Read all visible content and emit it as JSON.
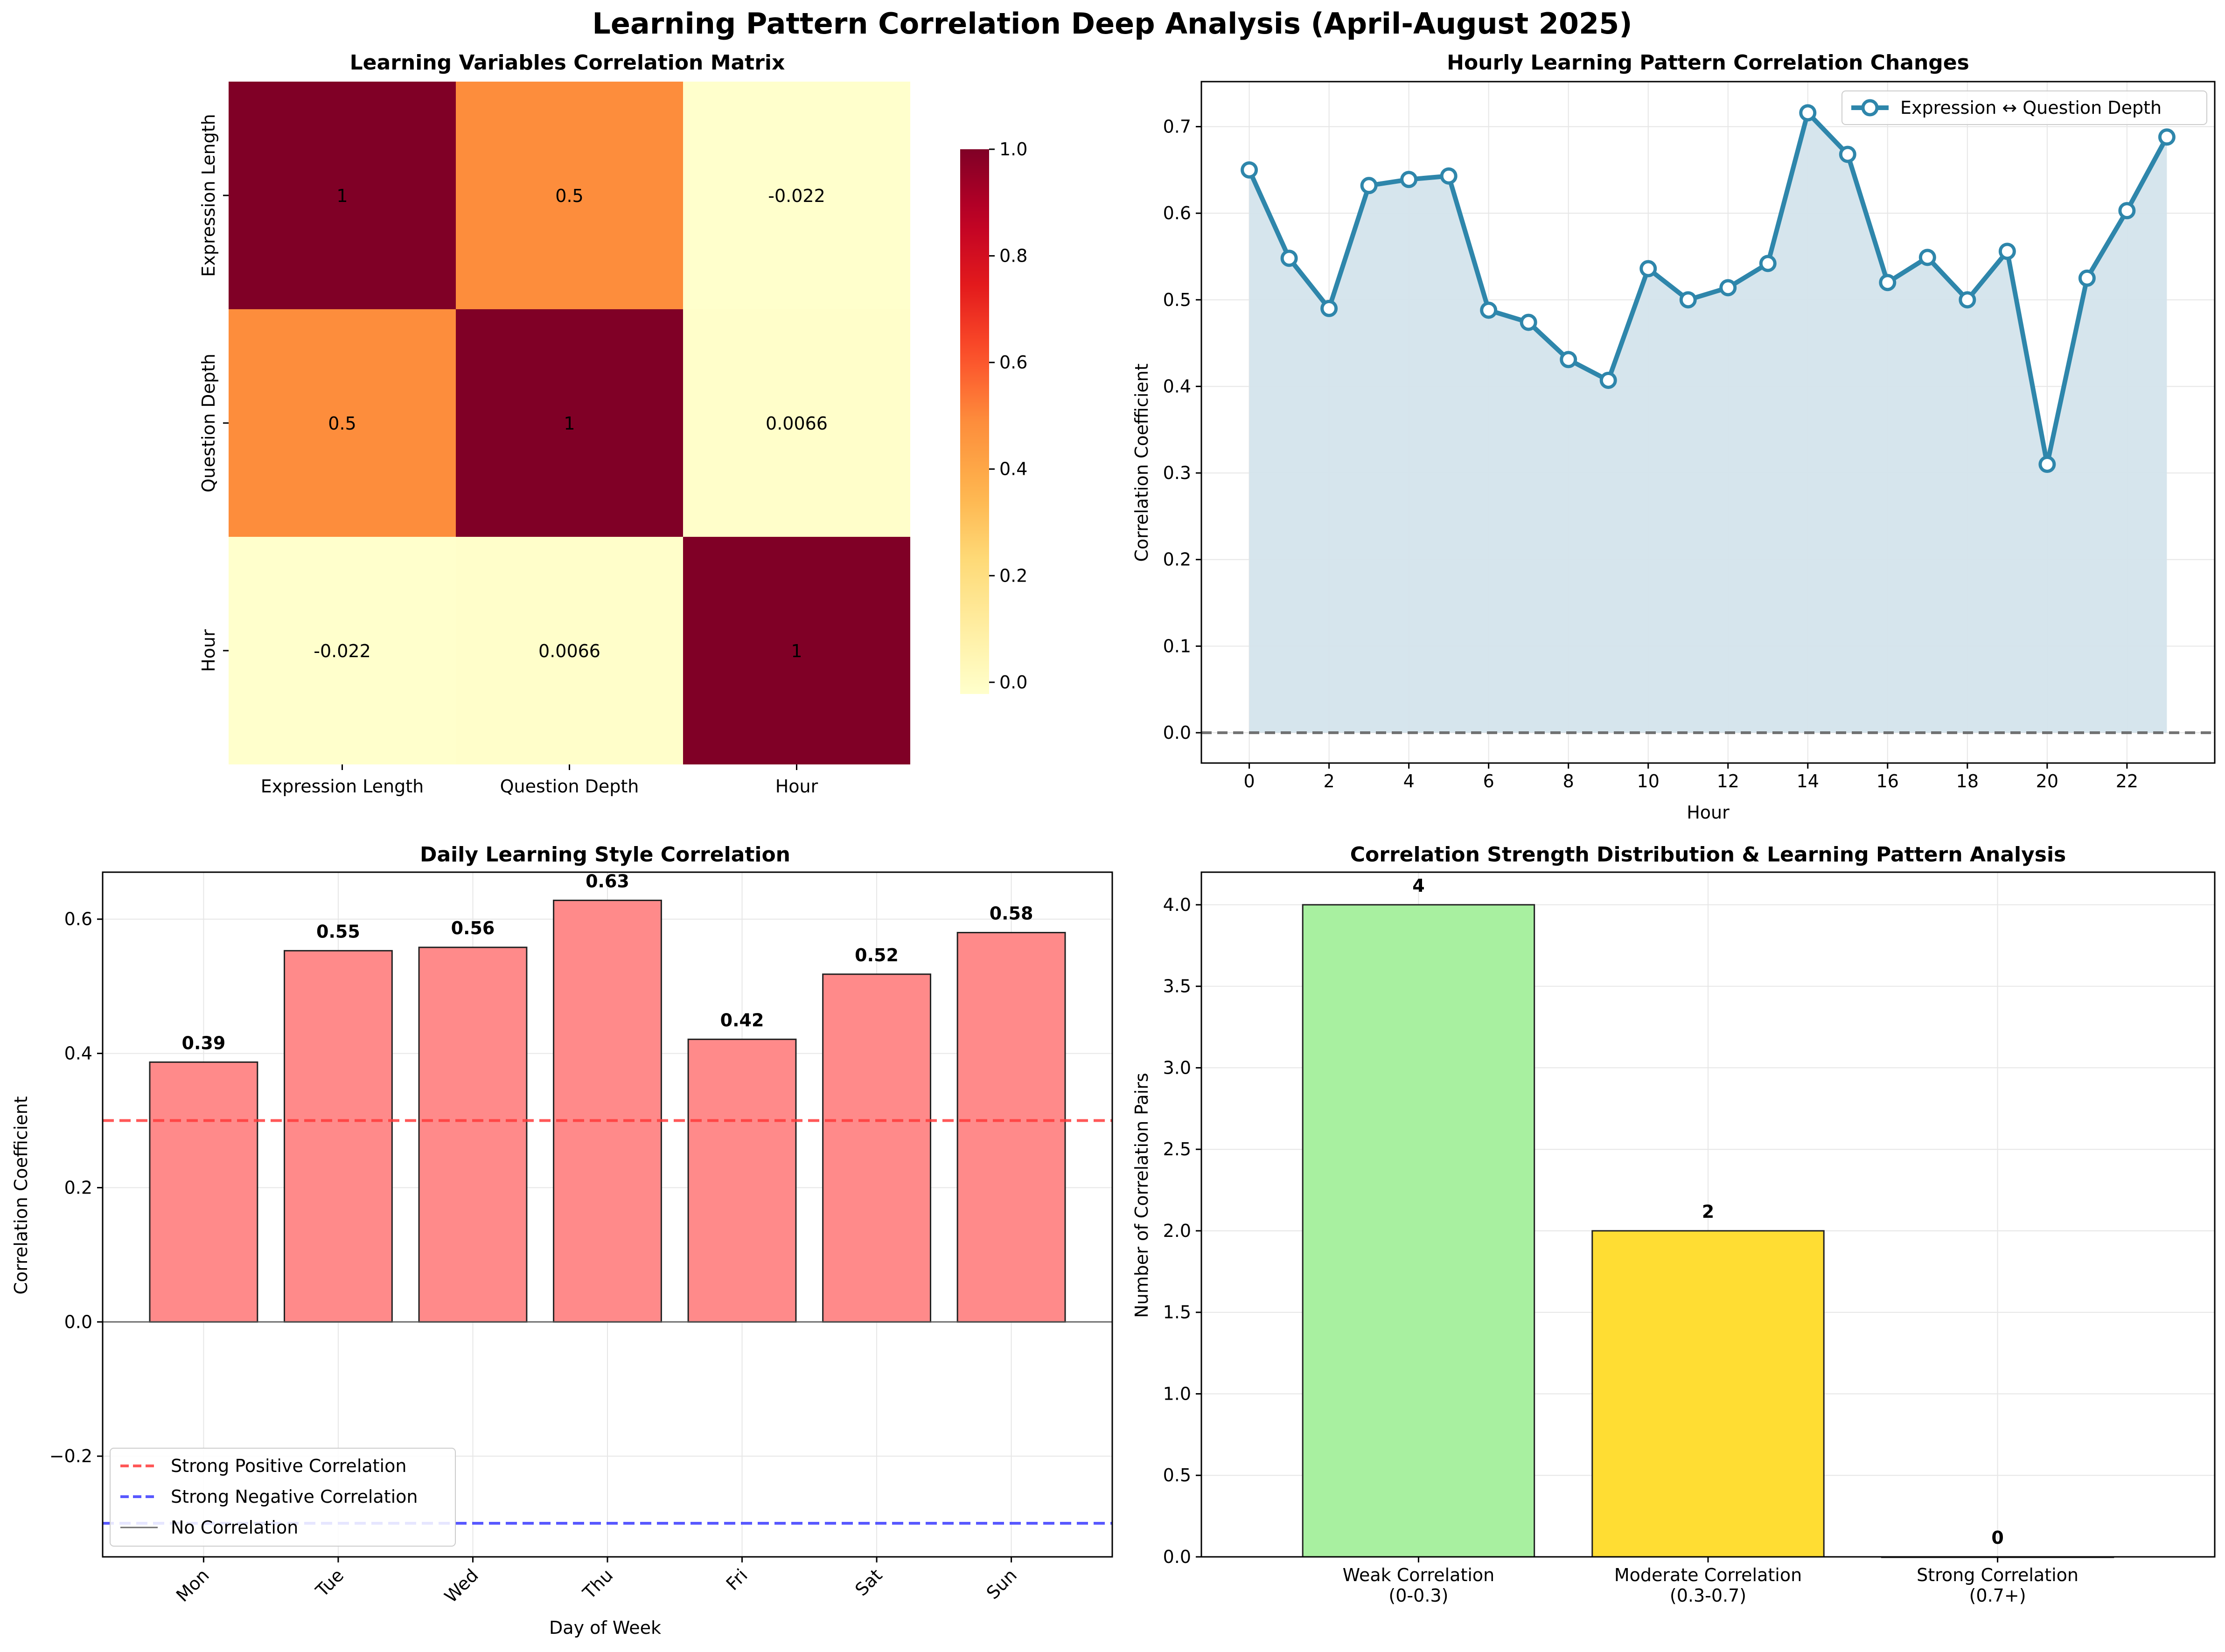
{
  "figure_title": "Learning Pattern Correlation Deep Analysis (April-August 2025)",
  "colors": {
    "line": "#2e86ab",
    "area": "#d4e4ec",
    "daily_bar": "#ff8a8a",
    "strong_pos_line": "#ff3b3b",
    "strong_neg_line": "#3b3bff",
    "weak_bar": "#a8f0a0",
    "moderate_bar": "#ffdd33",
    "strong_bar": "#ff6060"
  },
  "chart_data": [
    {
      "id": "heatmap",
      "type": "heatmap",
      "title": "Learning Variables Correlation Matrix",
      "rows": [
        "Expression Length",
        "Question Depth",
        "Hour"
      ],
      "cols": [
        "Expression Length",
        "Question Depth",
        "Hour"
      ],
      "values": [
        [
          1,
          0.5,
          -0.022
        ],
        [
          0.5,
          1,
          0.0066
        ],
        [
          -0.022,
          0.0066,
          1
        ]
      ],
      "cell_labels": [
        [
          "1",
          "0.5",
          "-0.022"
        ],
        [
          "0.5",
          "1",
          "0.0066"
        ],
        [
          "-0.022",
          "0.0066",
          "1"
        ]
      ],
      "colorbar": {
        "min": 0.0,
        "max": 1.0,
        "ticks": [
          "0.0",
          "0.2",
          "0.4",
          "0.6",
          "0.8",
          "1.0"
        ],
        "colormap": "YlOrRd"
      }
    },
    {
      "id": "hourly",
      "type": "line",
      "title": "Hourly Learning Pattern Correlation Changes",
      "xlabel": "Hour",
      "ylabel": "Correlation Coefficient",
      "x": [
        0,
        1,
        2,
        3,
        4,
        5,
        6,
        7,
        8,
        9,
        10,
        11,
        12,
        13,
        14,
        15,
        16,
        17,
        18,
        19,
        20,
        21,
        22,
        23
      ],
      "series": [
        {
          "name": "Expression ↔ Question Depth",
          "values": [
            0.65,
            0.548,
            0.49,
            0.632,
            0.639,
            0.643,
            0.488,
            0.474,
            0.431,
            0.407,
            0.536,
            0.5,
            0.514,
            0.542,
            0.716,
            0.668,
            0.52,
            0.549,
            0.5,
            0.556,
            0.31,
            0.525,
            0.603,
            0.688
          ]
        }
      ],
      "xlim": [
        -1.2,
        24.2
      ],
      "ylim": [
        -0.035,
        0.752
      ],
      "xticks": [
        "0",
        "2",
        "4",
        "6",
        "8",
        "10",
        "12",
        "14",
        "16",
        "18",
        "20",
        "22"
      ],
      "yticks": [
        "0.0",
        "0.1",
        "0.2",
        "0.3",
        "0.4",
        "0.5",
        "0.6",
        "0.7"
      ],
      "reference_line": 0.0,
      "grid": true,
      "legend": "top-right"
    },
    {
      "id": "daily",
      "type": "bar",
      "title": "Daily Learning Style Correlation",
      "xlabel": "Day of Week",
      "ylabel": "Correlation Coefficient",
      "categories": [
        "Mon",
        "Tue",
        "Wed",
        "Thu",
        "Fri",
        "Sat",
        "Sun"
      ],
      "values": [
        0.387,
        0.553,
        0.558,
        0.628,
        0.421,
        0.518,
        0.58
      ],
      "value_labels": [
        "0.39",
        "0.55",
        "0.56",
        "0.63",
        "0.42",
        "0.52",
        "0.58"
      ],
      "ylim": [
        -0.35,
        0.67
      ],
      "yticks": [
        "−0.2",
        "0.0",
        "0.2",
        "0.4",
        "0.6"
      ],
      "reference_lines": [
        {
          "label": "Strong Positive Correlation",
          "value": 0.3
        },
        {
          "label": "Strong Negative Correlation",
          "value": -0.3
        },
        {
          "label": "No Correlation",
          "value": 0.0
        }
      ],
      "grid": true,
      "legend": "lower-left"
    },
    {
      "id": "strength",
      "type": "bar",
      "title": "Correlation Strength Distribution & Learning Pattern Analysis",
      "ylabel": "Number of Correlation Pairs",
      "categories": [
        [
          "Weak Correlation",
          "(0-0.3)"
        ],
        [
          "Moderate Correlation",
          "(0.3-0.7)"
        ],
        [
          "Strong Correlation",
          "(0.7+)"
        ]
      ],
      "values": [
        4,
        2,
        0
      ],
      "value_labels": [
        "4",
        "2",
        "0"
      ],
      "ylim": [
        0,
        4.2
      ],
      "yticks": [
        "0.0",
        "0.5",
        "1.0",
        "1.5",
        "2.0",
        "2.5",
        "3.0",
        "3.5",
        "4.0"
      ],
      "grid": true
    }
  ]
}
